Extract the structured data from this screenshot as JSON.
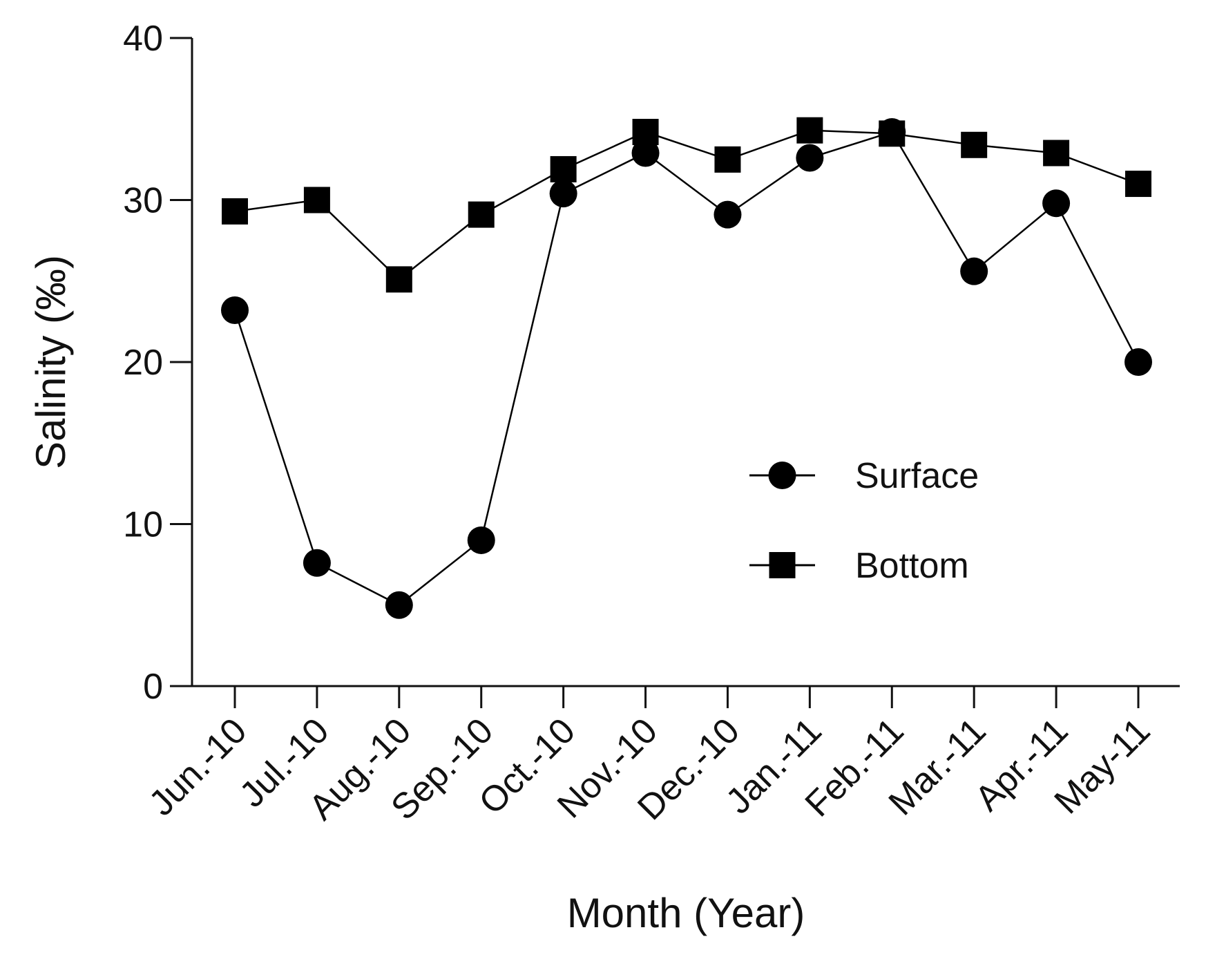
{
  "chart_data": {
    "type": "line",
    "title": "",
    "xlabel": "Month (Year)",
    "ylabel": "Salinity (‰)",
    "ylim": [
      0,
      40
    ],
    "yticks": [
      0,
      10,
      20,
      30,
      40
    ],
    "grid": false,
    "legend_position": "center-right",
    "categories": [
      "Jun.-10",
      "Jul.-10",
      "Aug.-10",
      "Sep.-10",
      "Oct.-10",
      "Nov.-10",
      "Dec.-10",
      "Jan.-11",
      "Feb.-11",
      "Mar.-11",
      "Apr.-11",
      "May-11"
    ],
    "series": [
      {
        "name": "Surface",
        "marker": "circle",
        "color": "#000000",
        "values": [
          23.2,
          7.6,
          5.0,
          9.0,
          30.4,
          32.9,
          29.1,
          32.6,
          34.2,
          25.6,
          29.8,
          20.0
        ]
      },
      {
        "name": "Bottom",
        "marker": "square",
        "color": "#000000",
        "values": [
          29.3,
          30.0,
          25.1,
          29.1,
          31.9,
          34.2,
          32.5,
          34.3,
          34.1,
          33.4,
          32.9,
          31.0
        ]
      }
    ]
  }
}
